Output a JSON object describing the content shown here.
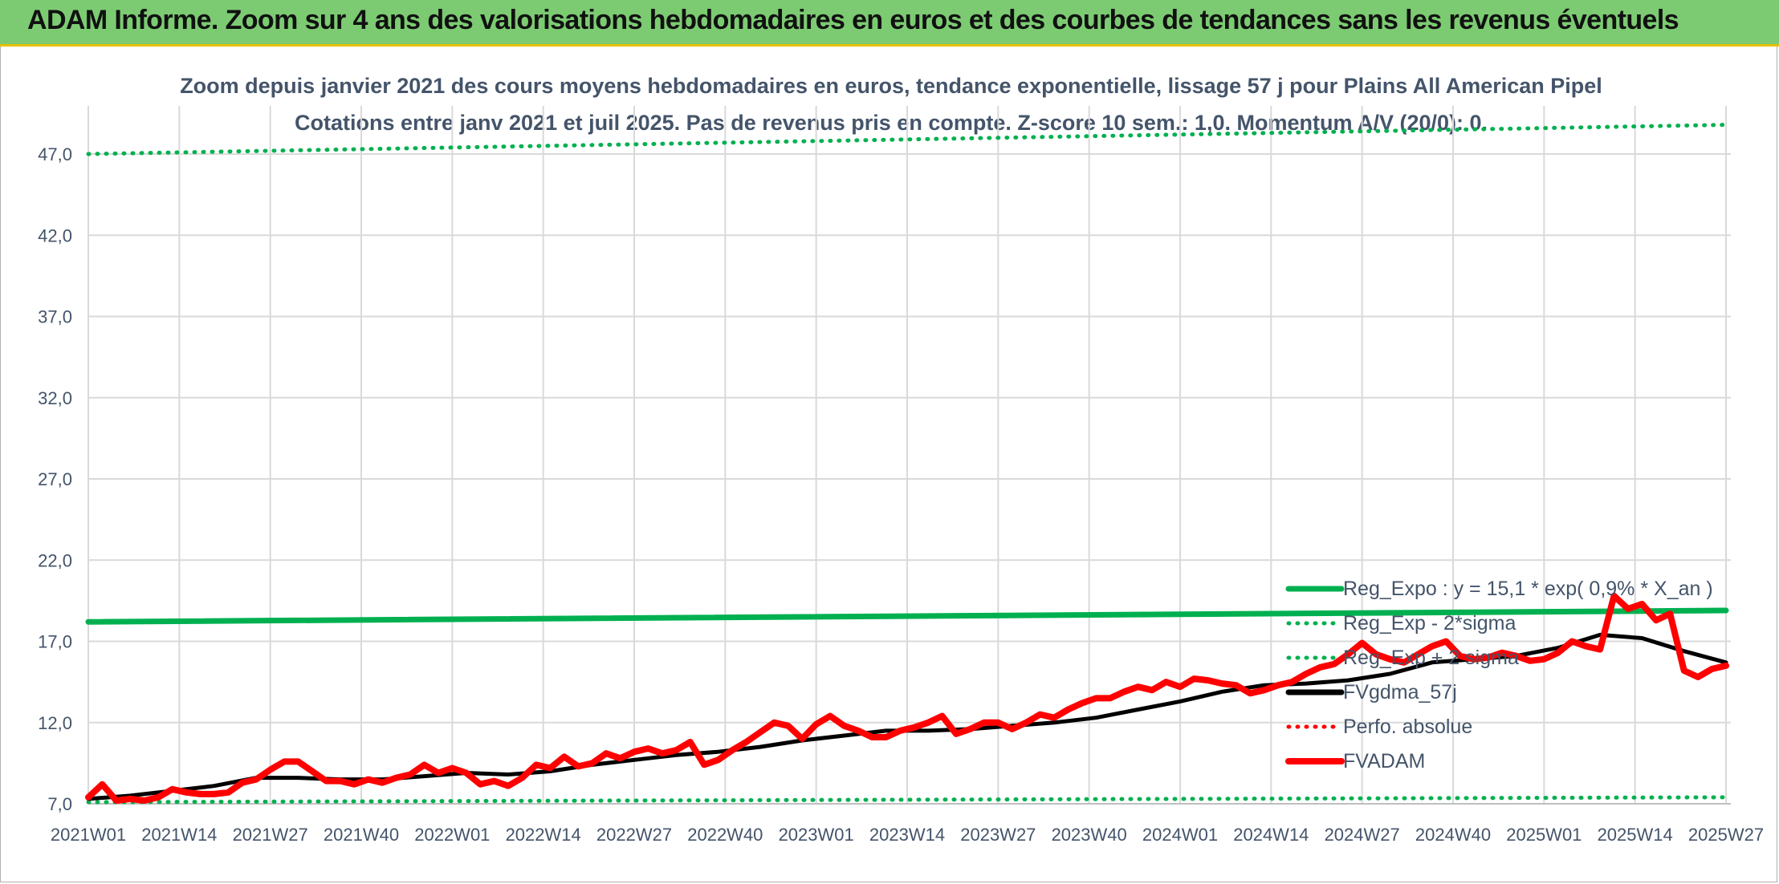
{
  "banner": {
    "title": "ADAM Informe. Zoom sur 4 ans des valorisations hebdomadaires en euros et des courbes de tendances sans les revenus éventuels"
  },
  "colors": {
    "banner_bg": "#7ccb72",
    "banner_border": "#e8c000",
    "trend": "#00b050",
    "fvgdma": "#000000",
    "fvadam": "#ff0000",
    "text": "#44546a",
    "grid": "#d9d9d9"
  },
  "chart_data": {
    "type": "line",
    "title": "Zoom depuis janvier 2021 des cours moyens hebdomadaires en euros, tendance exponentielle, lissage 57 j pour Plains All American Pipel",
    "subtitle": "Cotations entre janv 2021 et juil 2025. Pas de revenus pris en compte. Z-score 10 sem.: 1,0. Momentum A/V (20/0): 0.",
    "ylim": [
      7,
      49
    ],
    "yticks": [
      "7,0",
      "12,0",
      "17,0",
      "22,0",
      "27,0",
      "32,0",
      "37,0",
      "42,0",
      "47,0"
    ],
    "yticks_values": [
      7,
      12,
      17,
      22,
      27,
      32,
      37,
      42,
      47
    ],
    "xticks": [
      "2021W01",
      "2021W14",
      "2021W27",
      "2021W40",
      "2022W01",
      "2022W14",
      "2022W27",
      "2022W40",
      "2023W01",
      "2023W14",
      "2023W27",
      "2023W40",
      "2024W01",
      "2024W14",
      "2024W27",
      "2024W40",
      "2025W01",
      "2025W14",
      "2025W27"
    ],
    "grid": true,
    "legend_position": "right",
    "legend": [
      {
        "label": "Reg_Expo : y = 15,1 * exp( 0,9% *  X_an )",
        "style": "solid",
        "color": "#00b050"
      },
      {
        "label": "Reg_Exp - 2*sigma",
        "style": "dotted",
        "color": "#00b050"
      },
      {
        "label": "Reg_Exp + 2 sigma",
        "style": "dotted",
        "color": "#00b050"
      },
      {
        "label": "FVgdma_57j",
        "style": "solid",
        "color": "#000000"
      },
      {
        "label": "Perfo. absolue",
        "style": "dotted",
        "color": "#ff0000"
      },
      {
        "label": "FVADAM",
        "style": "solid",
        "color": "#ff0000"
      }
    ],
    "series": [
      {
        "name": "Reg_Expo : y = 15,1 * exp( 0,9% *  X_an )",
        "x": [
          0,
          234
        ],
        "values": [
          18.2,
          18.9
        ]
      },
      {
        "name": "Reg_Exp - 2*sigma",
        "x": [
          0,
          234
        ],
        "values": [
          7.1,
          7.4
        ]
      },
      {
        "name": "Reg_Exp + 2 sigma",
        "x": [
          0,
          234
        ],
        "values": [
          47.0,
          48.8
        ]
      },
      {
        "name": "FVgdma_57j",
        "x": [
          0,
          6,
          12,
          18,
          24,
          30,
          36,
          42,
          48,
          54,
          60,
          66,
          72,
          78,
          84,
          90,
          96,
          102,
          108,
          114,
          120,
          126,
          132,
          138,
          144,
          150,
          156,
          162,
          168,
          174,
          180,
          186,
          192,
          198,
          204,
          210,
          216,
          222,
          228,
          234
        ],
        "values": [
          7.3,
          7.5,
          7.8,
          8.1,
          8.6,
          8.6,
          8.5,
          8.5,
          8.7,
          8.9,
          8.8,
          9.0,
          9.4,
          9.7,
          10.0,
          10.2,
          10.5,
          10.9,
          11.2,
          11.5,
          11.5,
          11.6,
          11.8,
          12.0,
          12.3,
          12.8,
          13.3,
          13.9,
          14.3,
          14.4,
          14.6,
          15.0,
          15.7,
          15.9,
          16.1,
          16.6,
          17.4,
          17.2,
          16.4,
          15.7
        ]
      },
      {
        "name": "FVADAM",
        "x": [
          0,
          2,
          4,
          6,
          8,
          10,
          12,
          14,
          16,
          18,
          20,
          22,
          24,
          26,
          28,
          30,
          32,
          34,
          36,
          38,
          40,
          42,
          44,
          46,
          48,
          50,
          52,
          54,
          56,
          58,
          60,
          62,
          64,
          66,
          68,
          70,
          72,
          74,
          76,
          78,
          80,
          82,
          84,
          86,
          88,
          90,
          92,
          94,
          96,
          98,
          100,
          102,
          104,
          106,
          108,
          110,
          112,
          114,
          116,
          118,
          120,
          122,
          124,
          126,
          128,
          130,
          132,
          134,
          136,
          138,
          140,
          142,
          144,
          146,
          148,
          150,
          152,
          154,
          156,
          158,
          160,
          162,
          164,
          166,
          168,
          170,
          172,
          174,
          176,
          178,
          180,
          182,
          184,
          186,
          188,
          190,
          192,
          194,
          196,
          198,
          200,
          202,
          204,
          206,
          208,
          210,
          212,
          214,
          216,
          218,
          220,
          222,
          224,
          226,
          228,
          230,
          232,
          234
        ],
        "values": [
          7.4,
          8.2,
          7.2,
          7.3,
          7.2,
          7.4,
          7.9,
          7.7,
          7.6,
          7.6,
          7.7,
          8.3,
          8.5,
          9.1,
          9.6,
          9.6,
          9.0,
          8.4,
          8.4,
          8.2,
          8.5,
          8.3,
          8.6,
          8.8,
          9.4,
          8.9,
          9.2,
          8.9,
          8.2,
          8.4,
          8.1,
          8.6,
          9.4,
          9.2,
          9.9,
          9.3,
          9.5,
          10.1,
          9.8,
          10.2,
          10.4,
          10.1,
          10.3,
          10.8,
          9.4,
          9.7,
          10.3,
          10.8,
          11.4,
          12.0,
          11.8,
          11.0,
          11.9,
          12.4,
          11.8,
          11.5,
          11.1,
          11.1,
          11.5,
          11.7,
          12.0,
          12.4,
          11.3,
          11.6,
          12.0,
          12.0,
          11.6,
          12.0,
          12.5,
          12.3,
          12.8,
          13.2,
          13.5,
          13.5,
          13.9,
          14.2,
          14.0,
          14.5,
          14.2,
          14.7,
          14.6,
          14.4,
          14.3,
          13.8,
          14.0,
          14.3,
          14.5,
          15.0,
          15.4,
          15.6,
          16.2,
          16.9,
          16.2,
          15.9,
          15.7,
          16.2,
          16.7,
          17.0,
          16.1,
          15.9,
          16.0,
          16.3,
          16.1,
          15.8,
          15.9,
          16.3,
          17.0,
          16.7,
          16.5,
          19.8,
          19.0,
          19.3,
          18.3,
          18.7,
          15.2,
          14.8,
          15.3,
          15.5
        ]
      }
    ]
  }
}
